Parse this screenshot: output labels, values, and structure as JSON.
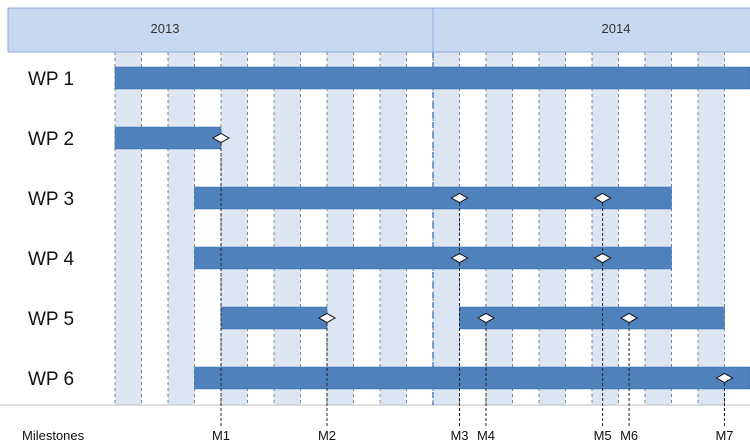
{
  "chart_data": {
    "type": "gantt",
    "years": [
      "2013",
      "2014"
    ],
    "year_boundary": 12,
    "period_count": 24,
    "rows": [
      {
        "label": "WP 1",
        "start": 0,
        "end": 24
      },
      {
        "label": "WP 2",
        "start": 0,
        "end": 4
      },
      {
        "label": "WP 3",
        "start": 3,
        "end": 21
      },
      {
        "label": "WP 4",
        "start": 3,
        "end": 21
      },
      {
        "label": "WP 5",
        "segments": [
          {
            "start": 4,
            "end": 8
          },
          {
            "start": 13,
            "end": 23
          }
        ]
      },
      {
        "label": "WP 6",
        "start": 3,
        "end": 24
      }
    ],
    "milestones_label": "Milestones",
    "milestones": [
      {
        "label": "M1",
        "at": 4,
        "rows": [
          1
        ]
      },
      {
        "label": "M2",
        "at": 8,
        "rows": [
          4
        ]
      },
      {
        "label": "M3",
        "at": 13,
        "rows": [
          2,
          3
        ]
      },
      {
        "label": "M4",
        "at": 14,
        "rows": [
          4
        ]
      },
      {
        "label": "M5",
        "at": 18.4,
        "rows": [
          2,
          3
        ]
      },
      {
        "label": "M6",
        "at": 19.4,
        "rows": [
          4
        ]
      },
      {
        "label": "M7",
        "at": 23,
        "rows": [
          5
        ]
      }
    ]
  },
  "colors": {
    "header": "#c6d9f1",
    "band": "#dce6f2",
    "bar": "#4f81bd",
    "bar_edge": "#3d6ea8",
    "divider": "#4f81bd"
  }
}
